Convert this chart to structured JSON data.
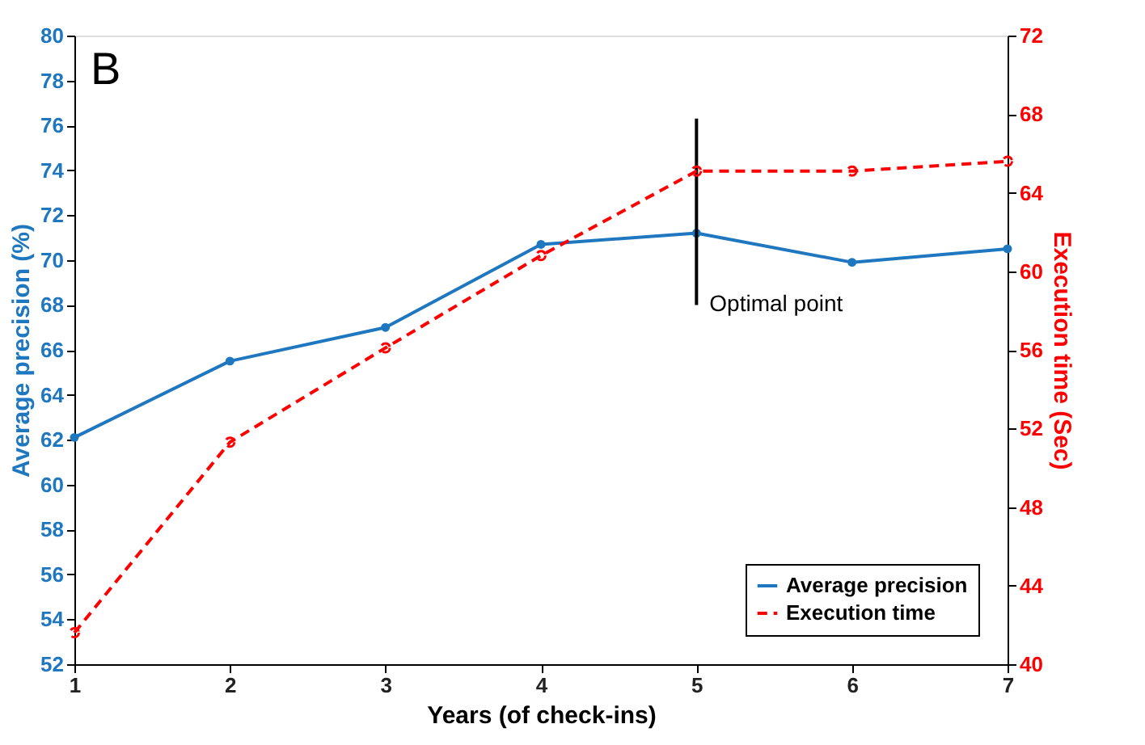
{
  "chart_data": {
    "type": "line",
    "title": "B",
    "xlabel": "Years (of check-ins)",
    "ylabel": "Average precision (%)",
    "y2label": "Execution time (Sec)",
    "x": [
      1,
      2,
      3,
      4,
      5,
      6,
      7
    ],
    "xlim": [
      1,
      7
    ],
    "xticks": [
      1,
      2,
      3,
      4,
      5,
      6,
      7
    ],
    "ylim": [
      52,
      80
    ],
    "yticks": [
      52,
      54,
      56,
      58,
      60,
      62,
      64,
      66,
      68,
      70,
      72,
      74,
      76,
      78,
      80
    ],
    "y2lim": [
      40,
      72
    ],
    "y2ticks": [
      40,
      44,
      48,
      52,
      56,
      60,
      64,
      68,
      72
    ],
    "series": [
      {
        "name": "Average precision",
        "color": "#1f77c0",
        "values": [
          62.1,
          65.5,
          67.0,
          70.7,
          71.2,
          69.9,
          70.5
        ],
        "marker": "circle",
        "line_style": "solid"
      },
      {
        "name": "Execution time",
        "color": "#ff0000",
        "values": [
          41.6,
          51.3,
          56.1,
          60.8,
          65.1,
          65.1,
          65.6
        ],
        "axis": "y2",
        "marker": "circle",
        "line_style": "dashed"
      },
      {
        "type": "line",
        "color": "#000000",
        "x": [
          5,
          5
        ],
        "values": [
          68.0,
          76.3
        ],
        "marker": "none",
        "line_style": "solid"
      }
    ],
    "annotations": [
      "Optimal point"
    ],
    "legend": "bottom right",
    "grid": false
  }
}
